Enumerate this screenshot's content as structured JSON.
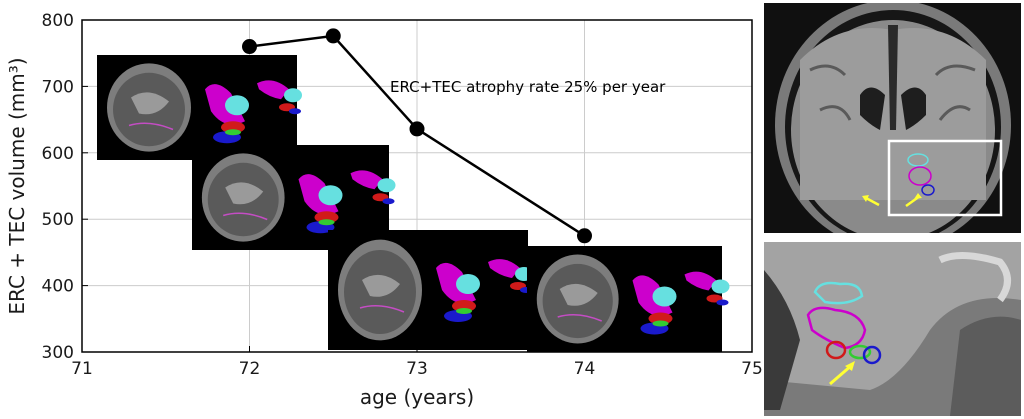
{
  "chart_data": {
    "type": "line",
    "title": "",
    "xlabel": "age (years)",
    "ylabel": "ERC + TEC volume (mm³)",
    "xlim": [
      71,
      75
    ],
    "ylim": [
      300,
      800
    ],
    "xticks": [
      "71",
      "72",
      "73",
      "74",
      "75"
    ],
    "yticks": [
      "300",
      "400",
      "500",
      "600",
      "700",
      "800"
    ],
    "grid": true,
    "series": [
      {
        "values": [
          {
            "x": 72.0,
            "y": 760
          },
          {
            "x": 72.5,
            "y": 776
          },
          {
            "x": 73.0,
            "y": 636
          },
          {
            "x": 74.0,
            "y": 475
          }
        ]
      }
    ],
    "annotations": [
      {
        "text": "ERC+TEC atrophy rate 25% per year"
      }
    ]
  },
  "colors": {
    "line": "#000000",
    "marker": "#000000",
    "grid": "#cccccc",
    "frame_bg": "#ffffff",
    "segmentation": {
      "erc": "#cc00cc",
      "tec": "#66e0e0",
      "hippocampus_red": "#d11a1a",
      "hippocampus_blue": "#1a1acc",
      "green": "#33cc33",
      "arrow": "#ffff33",
      "roi_box": "#ffffff"
    }
  },
  "icons": [
    "sagittal-mri-thumbnail",
    "segmentation-3d-rendering",
    "coronal-mri",
    "zoomed-coronal-mri",
    "yellow-arrow"
  ]
}
